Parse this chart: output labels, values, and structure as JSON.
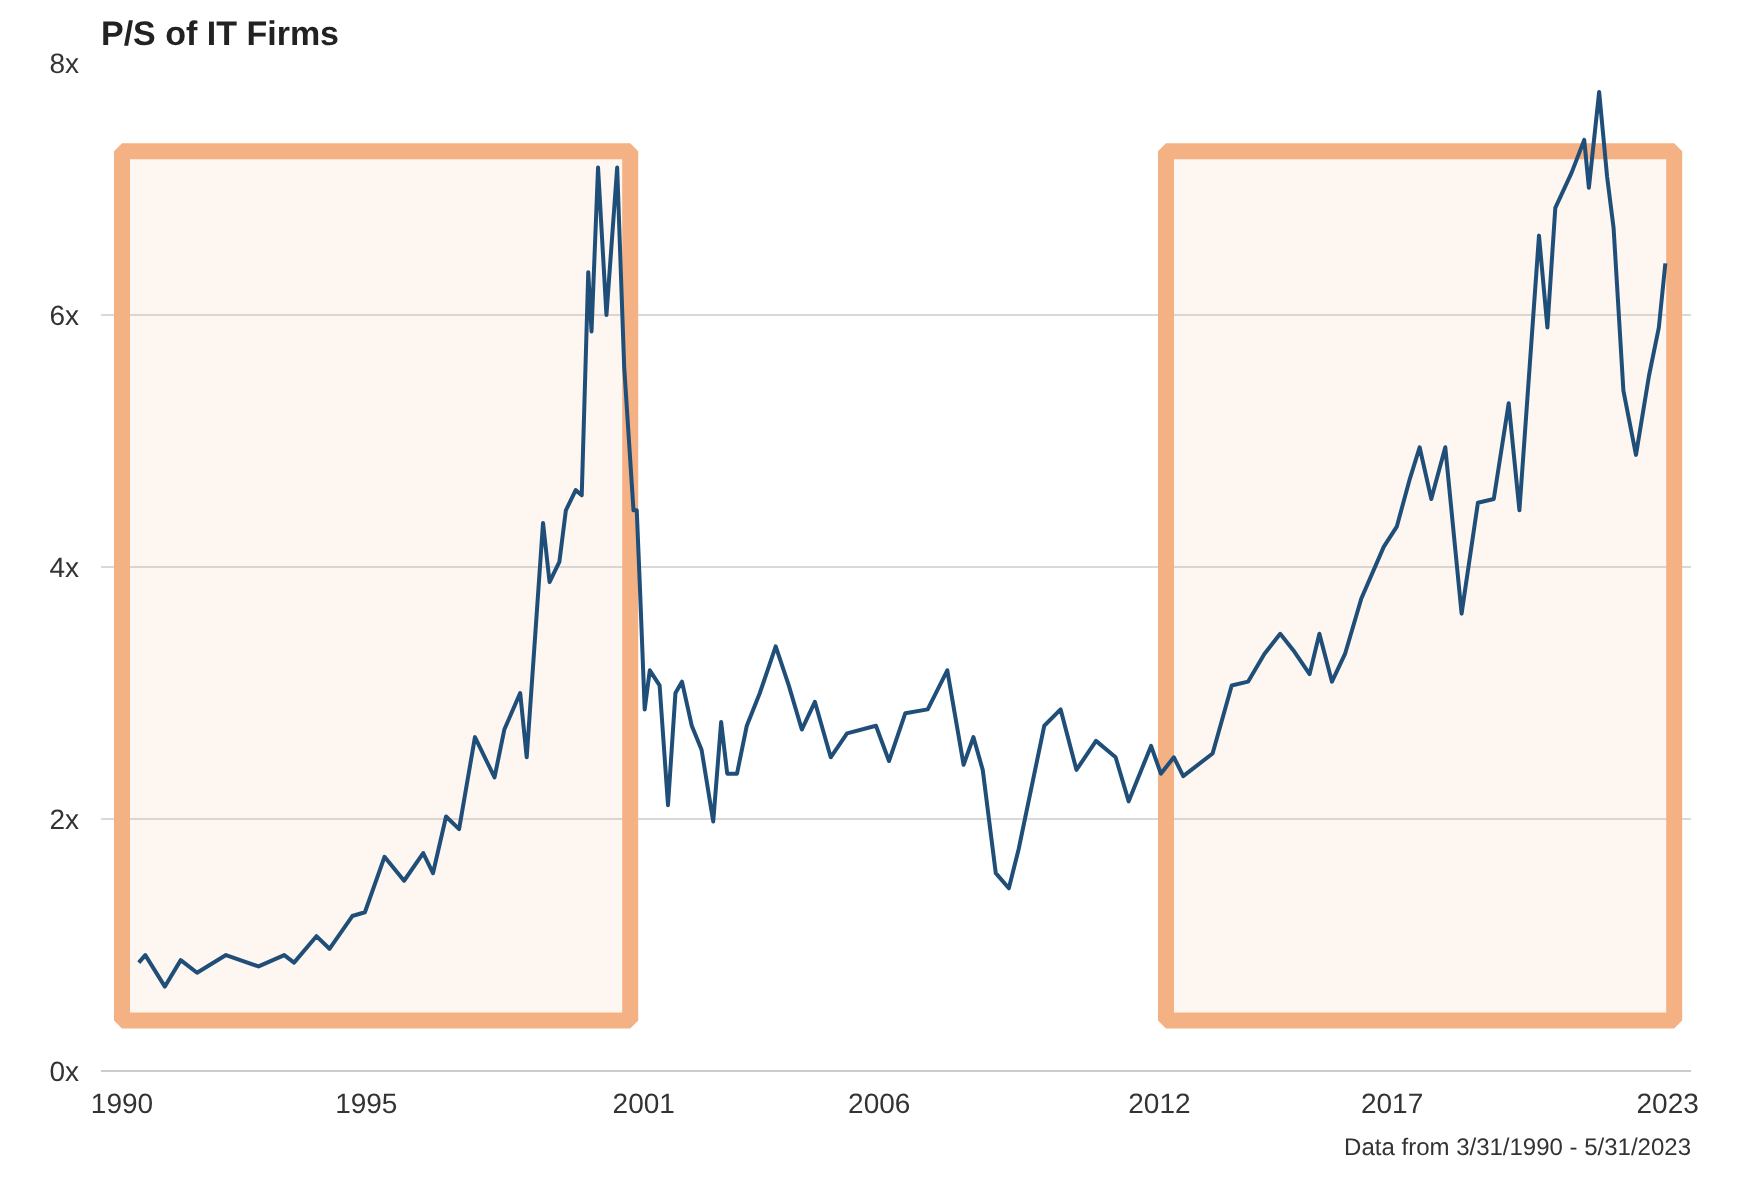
{
  "chart_data": {
    "type": "line",
    "title": "P/S of IT Firms",
    "annotations": [
      "Data from 3/31/1990 - 5/31/2023"
    ],
    "x": [
      1990.61,
      1990.75,
      1991.17,
      1991.51,
      1991.86,
      1992.48,
      1993.18,
      1993.73,
      1993.94,
      1994.42,
      1994.7,
      1995.19,
      1995.46,
      1995.88,
      1996.3,
      1996.71,
      1996.92,
      1997.2,
      1997.48,
      1997.82,
      1998.24,
      1998.45,
      1998.79,
      1998.93,
      1999.28,
      1999.42,
      1999.63,
      1999.77,
      1999.98,
      2000.11,
      2000.25,
      2000.32,
      2000.46,
      2000.64,
      2000.87,
      2001.02,
      2001.22,
      2001.29,
      2001.36,
      2001.46,
      2001.57,
      2001.78,
      2001.96,
      2002.12,
      2002.26,
      2002.47,
      2002.68,
      2002.93,
      2003.1,
      2003.23,
      2003.44,
      2003.65,
      2003.93,
      2004.27,
      2004.55,
      2004.83,
      2005.11,
      2005.45,
      2005.8,
      2006.42,
      2006.7,
      2007.05,
      2007.53,
      2007.95,
      2008.3,
      2008.51,
      2008.71,
      2008.99,
      2009.27,
      2009.48,
      2010.03,
      2010.38,
      2010.72,
      2011.14,
      2011.56,
      2011.84,
      2012.32,
      2012.53,
      2012.81,
      2013.01,
      2013.64,
      2014.05,
      2014.4,
      2014.75,
      2015.09,
      2015.37,
      2015.72,
      2015.93,
      2016.2,
      2016.48,
      2016.83,
      2017.31,
      2017.59,
      2017.87,
      2018.08,
      2018.33,
      2018.63,
      2018.98,
      2019.33,
      2019.67,
      2019.99,
      2020.22,
      2020.64,
      2020.82,
      2020.99,
      2021.34,
      2021.61,
      2021.71,
      2021.93,
      2022.1,
      2022.24,
      2022.45,
      2022.72,
      2023.0,
      2023.21,
      2023.35
    ],
    "series": [
      {
        "color": "#1f4e79",
        "values": [
          0.86,
          0.92,
          0.67,
          0.88,
          0.78,
          0.92,
          0.83,
          0.92,
          0.86,
          1.07,
          0.97,
          1.23,
          1.26,
          1.7,
          1.51,
          1.73,
          1.57,
          2.02,
          1.92,
          2.65,
          2.33,
          2.71,
          3.0,
          2.49,
          4.35,
          3.88,
          4.04,
          4.45,
          4.61,
          4.57,
          6.34,
          5.87,
          7.17,
          6.0,
          7.17,
          5.59,
          4.45,
          4.45,
          3.82,
          2.87,
          3.18,
          3.06,
          2.11,
          3.0,
          3.09,
          2.74,
          2.55,
          1.98,
          2.77,
          2.36,
          2.36,
          2.74,
          3.0,
          3.37,
          3.06,
          2.71,
          2.93,
          2.49,
          2.68,
          2.74,
          2.46,
          2.84,
          2.87,
          3.18,
          2.43,
          2.65,
          2.39,
          1.57,
          1.45,
          1.76,
          2.74,
          2.87,
          2.39,
          2.62,
          2.49,
          2.14,
          2.58,
          2.36,
          2.49,
          2.34,
          2.52,
          3.06,
          3.09,
          3.31,
          3.47,
          3.34,
          3.15,
          3.47,
          3.09,
          3.31,
          3.75,
          4.16,
          4.32,
          4.7,
          4.95,
          4.54,
          4.95,
          3.63,
          4.51,
          4.54,
          5.3,
          4.45,
          6.63,
          5.9,
          6.85,
          7.13,
          7.39,
          7.01,
          7.77,
          7.1,
          6.69,
          5.4,
          4.89,
          5.52,
          5.9,
          6.41
        ]
      }
    ],
    "xlim": [
      1989.8,
      2023.9
    ],
    "xticks": [
      {
        "value": 1990.25,
        "label": "1990"
      },
      {
        "value": 1995.49,
        "label": "1995"
      },
      {
        "value": 2001.44,
        "label": "2001"
      },
      {
        "value": 2006.49,
        "label": "2006"
      },
      {
        "value": 2012.5,
        "label": "2012"
      },
      {
        "value": 2017.49,
        "label": "2017"
      },
      {
        "value": 2023.4,
        "label": "2023"
      }
    ],
    "ylim": [
      0,
      8
    ],
    "yticks": [
      {
        "value": 0,
        "label": "0x"
      },
      {
        "value": 2,
        "label": "2x"
      },
      {
        "value": 4,
        "label": "4x"
      },
      {
        "value": 6,
        "label": "6x"
      },
      {
        "value": 8,
        "label": "8x"
      }
    ],
    "grid": "y",
    "bands": [
      {
        "axis": "x",
        "from": 1990.25,
        "to": 2001.15,
        "color": "#f4b183"
      },
      {
        "axis": "x",
        "from": 2012.64,
        "to": 2023.54,
        "color": "#f4b183"
      }
    ]
  }
}
